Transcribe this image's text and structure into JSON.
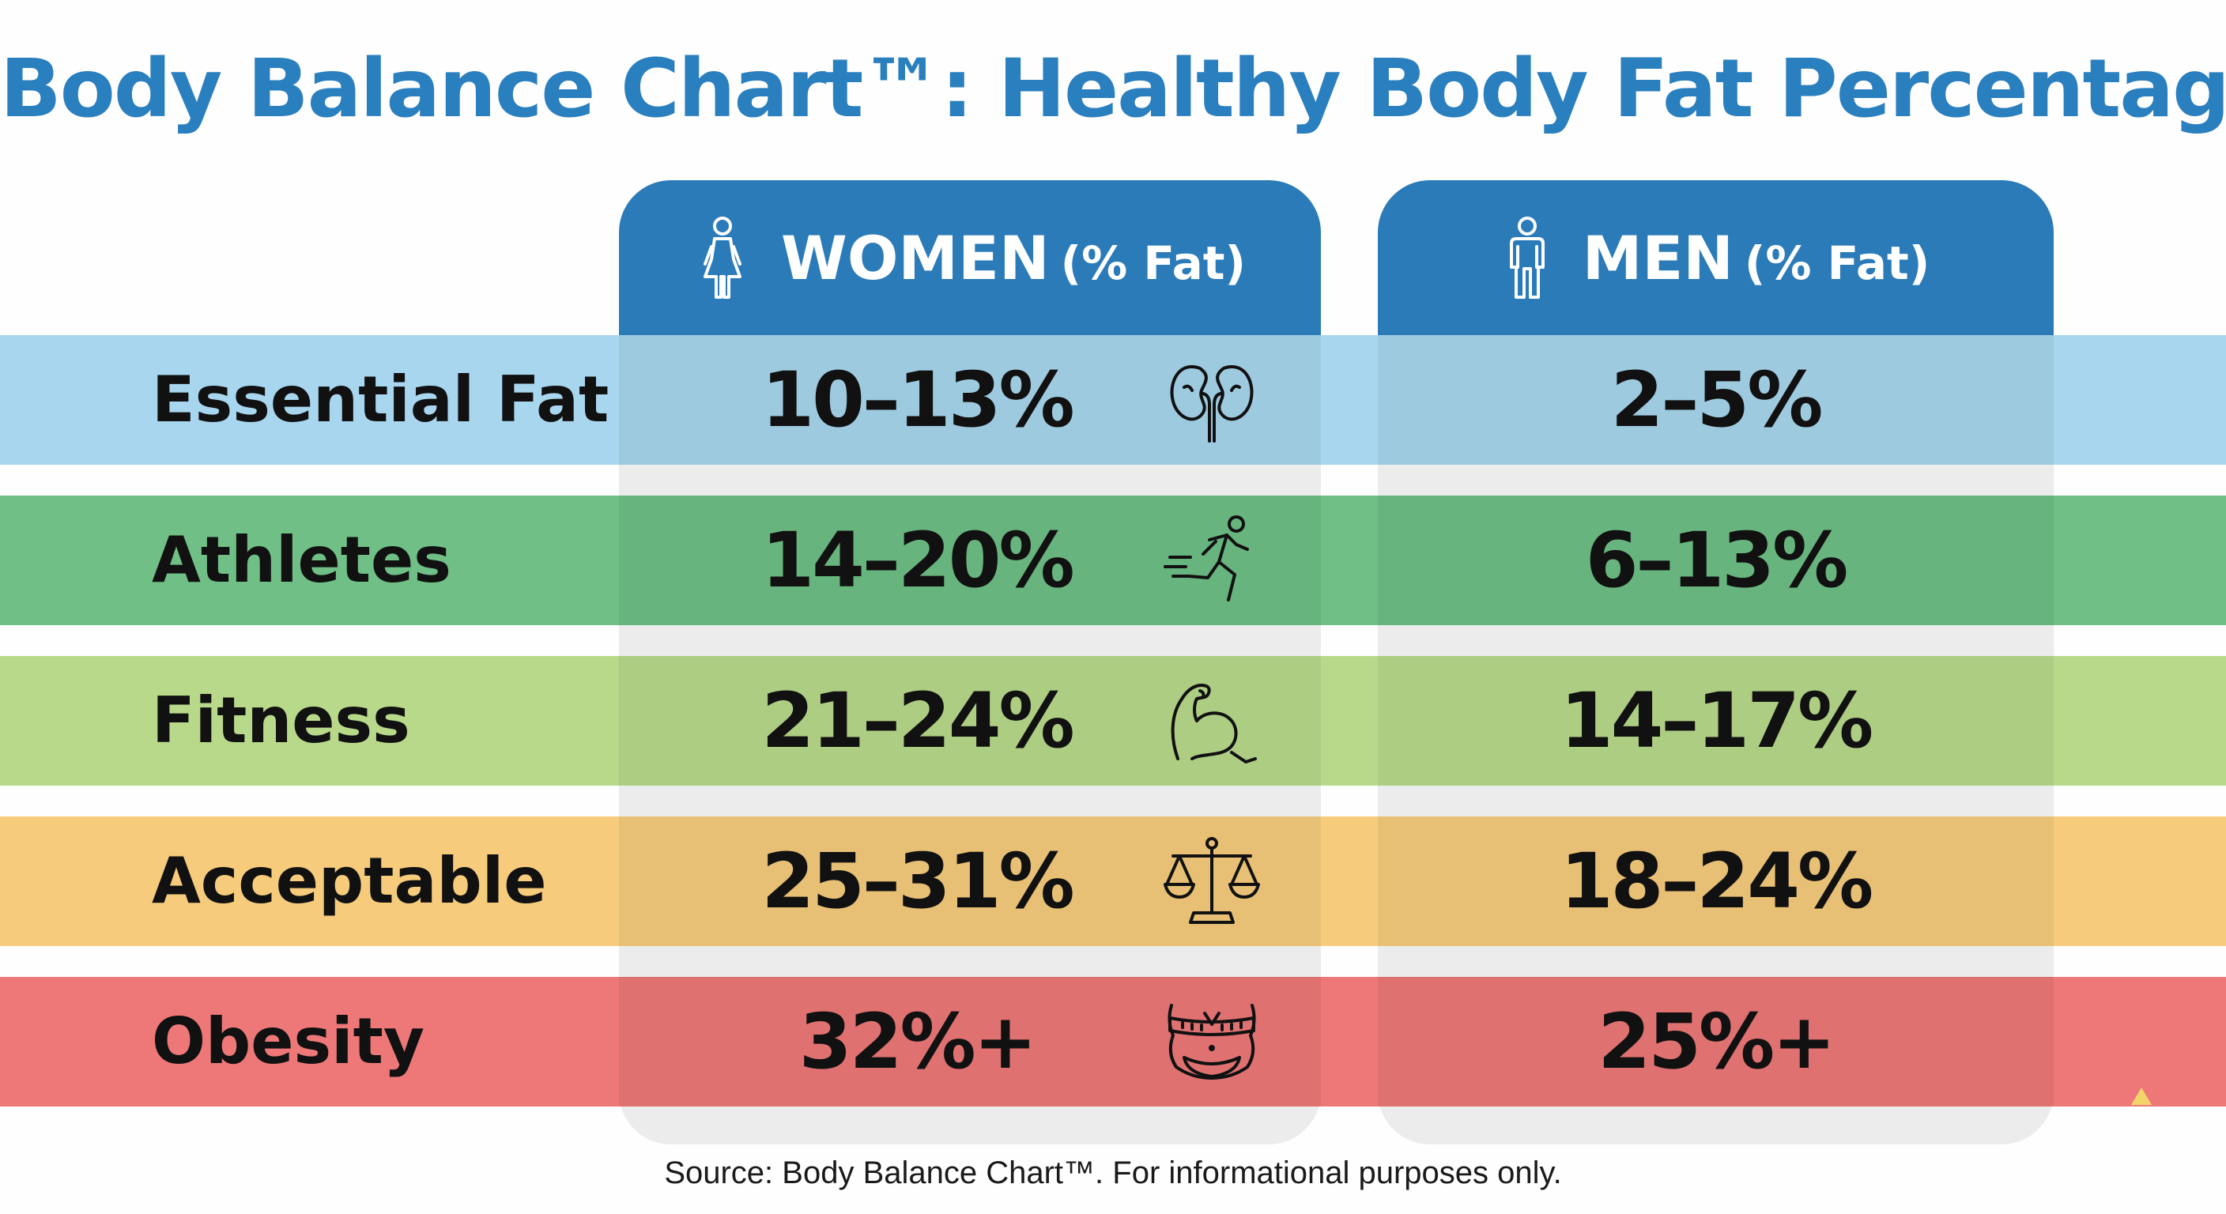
{
  "title": "Body Balance Chart™: Healthy Body Fat Percentages",
  "columns": {
    "women": {
      "label": "WOMEN",
      "unit": "(% Fat)",
      "icon": "woman-icon"
    },
    "men": {
      "label": "MEN",
      "unit": "(% Fat)",
      "icon": "man-icon"
    }
  },
  "source": "Source: Body Balance Chart™. For informational purposes only.",
  "chart_data": {
    "type": "table",
    "title": "Body Balance Chart™: Healthy Body Fat Percentages",
    "columns": [
      "WOMEN (% Fat)",
      "MEN (% Fat)"
    ],
    "rows": [
      {
        "category": "Essential Fat",
        "women": "10–13%",
        "men": "2–5%",
        "icon": "kidneys-icon",
        "color": "#a8d6ee"
      },
      {
        "category": "Athletes",
        "women": "14–20%",
        "men": "6–13%",
        "icon": "runner-icon",
        "color": "#6fbf86"
      },
      {
        "category": "Fitness",
        "women": "21–24%",
        "men": "14–17%",
        "icon": "flexed-arm-icon",
        "color": "#b8d98a"
      },
      {
        "category": "Acceptable",
        "women": "25–31%",
        "men": "18–24%",
        "icon": "balance-scale-icon",
        "color": "#f6cc7c"
      },
      {
        "category": "Obesity",
        "women": "32%+",
        "men": "25%+",
        "icon": "waist-tape-icon",
        "color": "#ee7878"
      }
    ]
  },
  "colors": {
    "title": "#2a7fbf",
    "header": "#2b7bb9",
    "panel": "#ececec"
  }
}
